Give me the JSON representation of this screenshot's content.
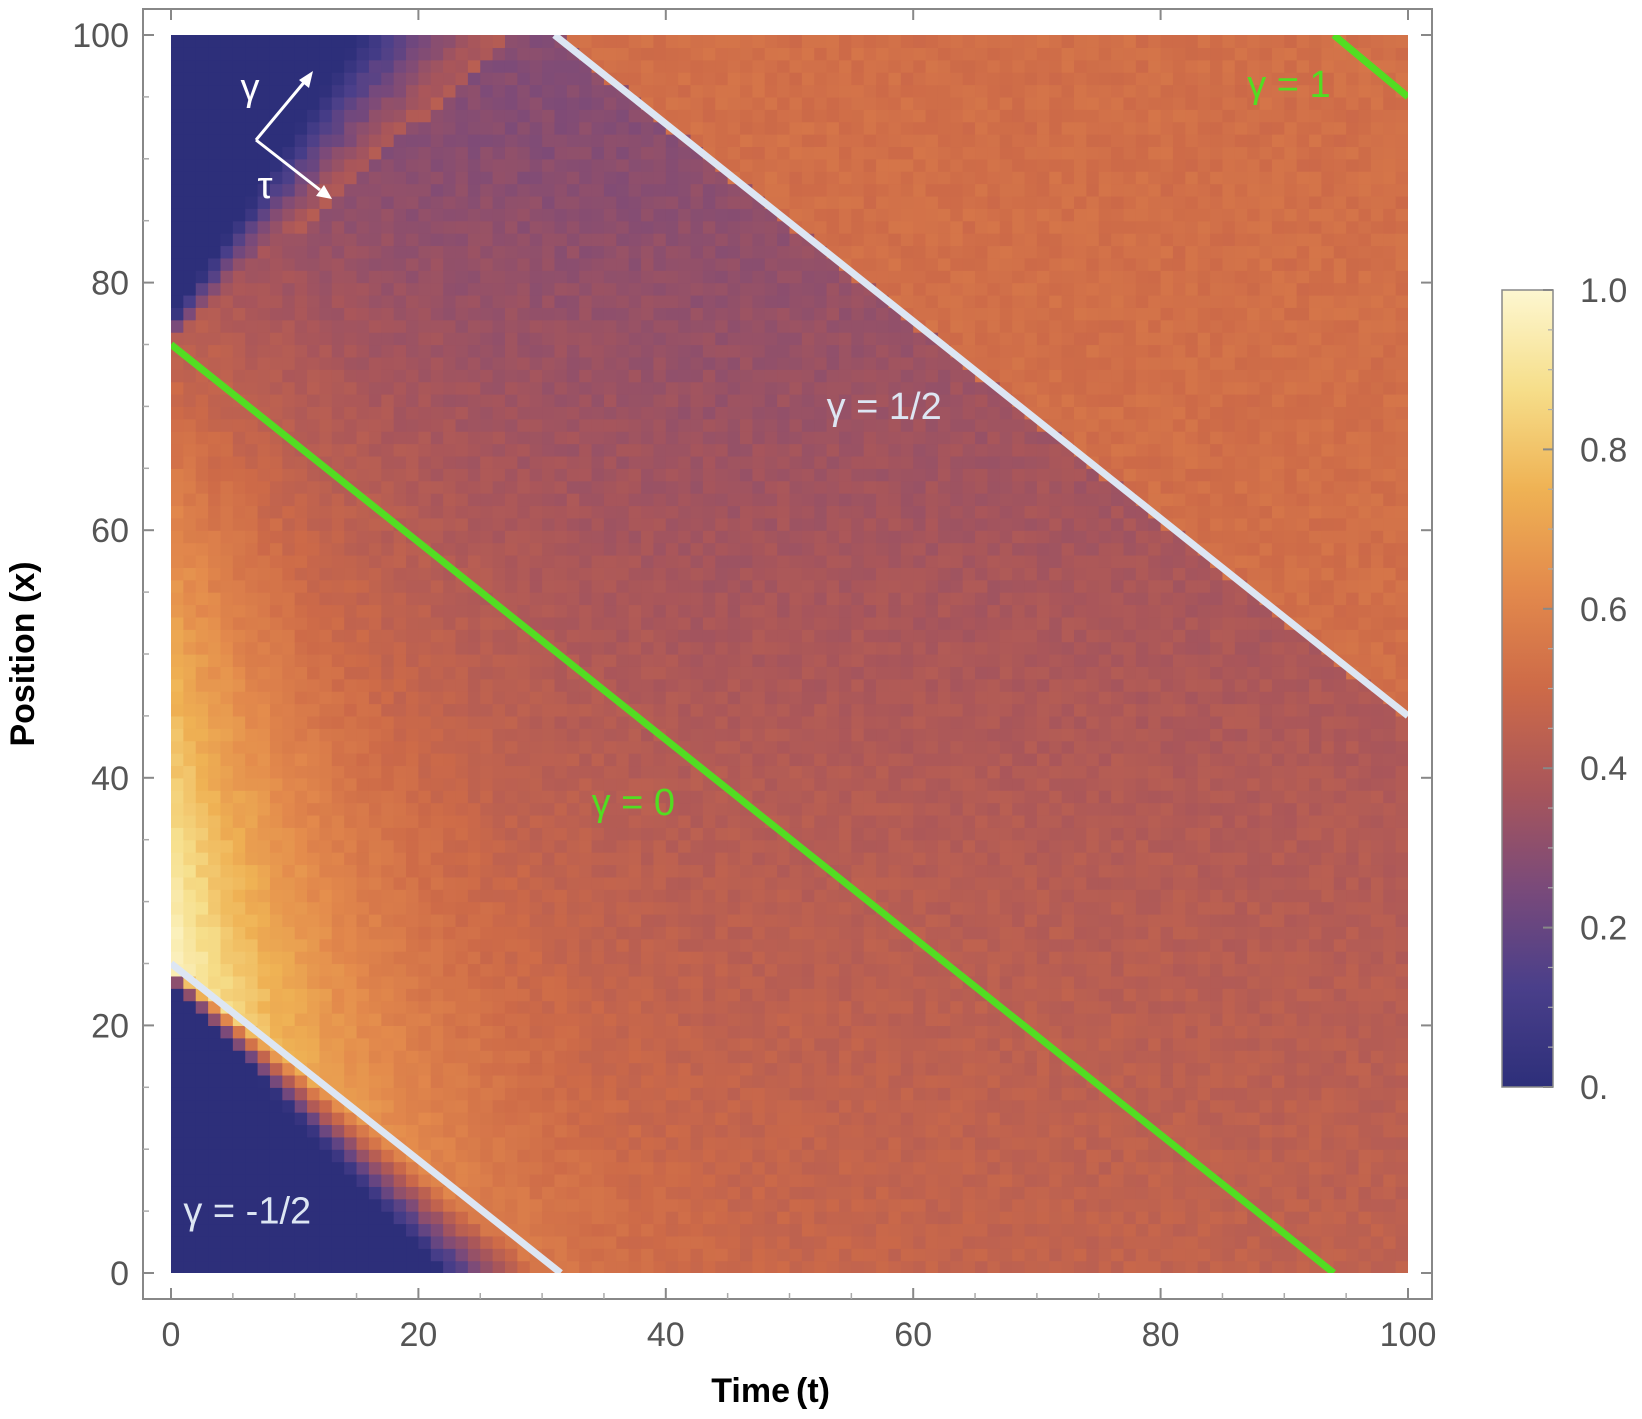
{
  "chart_data": {
    "type": "heatmap",
    "xlabel_parts": [
      "Time",
      "(t)"
    ],
    "ylabel": "Position (x)",
    "xlim": [
      0,
      100
    ],
    "ylim": [
      0,
      100
    ],
    "x_ticks": [
      0,
      20,
      40,
      60,
      80,
      100
    ],
    "x_tick_labels": [
      "0",
      "20",
      "40",
      "60",
      "80",
      "100"
    ],
    "y_ticks": [
      0,
      20,
      40,
      60,
      80,
      100
    ],
    "y_tick_labels": [
      "0",
      "20",
      "40",
      "60",
      "80",
      "100"
    ],
    "colorbar": {
      "range": [
        0,
        1
      ],
      "ticks": [
        0,
        0.2,
        0.4,
        0.6,
        0.8,
        1.0
      ],
      "tick_labels": [
        "0.",
        "0.2",
        "0.4",
        "0.6",
        "0.8",
        "1.0"
      ],
      "colors": [
        "#2d2f7a",
        "#4a3f8a",
        "#7a4a7a",
        "#a9565a",
        "#cd6a48",
        "#e38a4c",
        "#efb254",
        "#f6de8a",
        "#fdf7d0"
      ]
    },
    "lines": [
      {
        "label": "γ = -1/2",
        "color": "#dde6f3",
        "x": [
          0,
          31.5
        ],
        "y": [
          25,
          0
        ],
        "label_x": 1,
        "label_y": 4
      },
      {
        "label": "γ = 0",
        "color": "#52dd22",
        "x": [
          0,
          94
        ],
        "y": [
          75,
          0
        ],
        "label_x": 34,
        "label_y": 37
      },
      {
        "label": "γ = 1/2",
        "color": "#dde6f3",
        "x": [
          31,
          100
        ],
        "y": [
          100,
          45
        ],
        "label_x": 53,
        "label_y": 69
      },
      {
        "label": "γ = 1",
        "color": "#52dd22",
        "x": [
          94,
          100
        ],
        "y": [
          100,
          95
        ],
        "label_x": 87,
        "label_y": 95
      }
    ],
    "axes_glyph": {
      "up_label": "γ",
      "down_label": "τ",
      "color": "#ffffff"
    },
    "field_model": "density wave spreading from initial step at x in [25,75]; value ≈ 0.5 away from fronts, peak ≈ 1 near x=25..75 at t=0, 0 outside"
  }
}
